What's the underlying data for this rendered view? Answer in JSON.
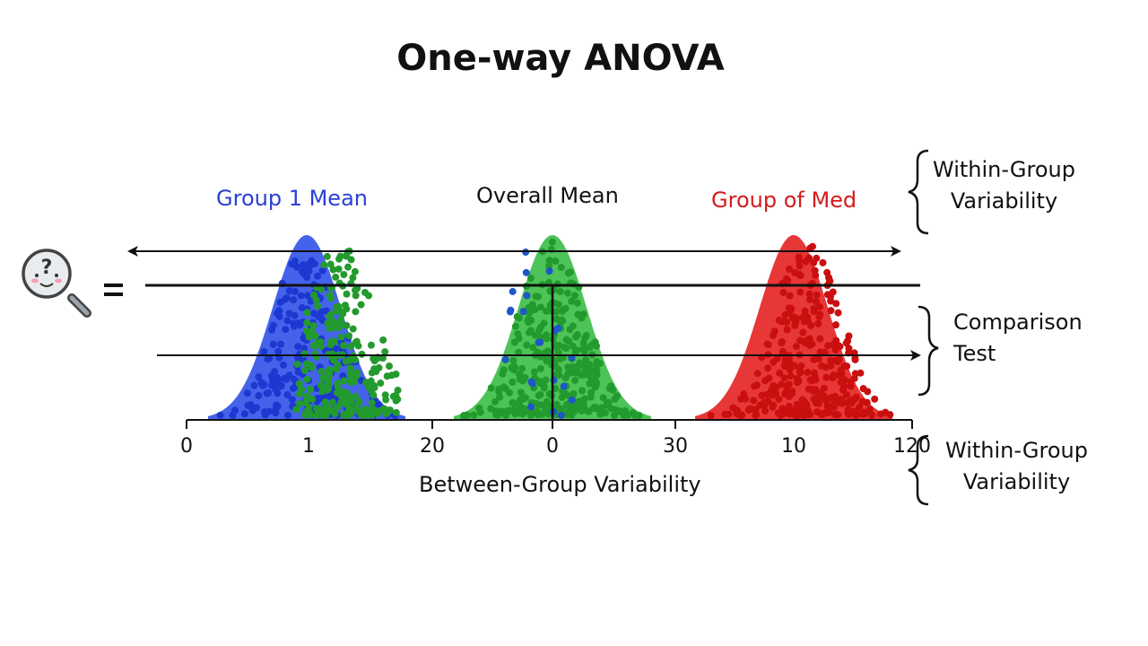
{
  "title": "One-way ANOVA",
  "labels": {
    "group1": "Group 1 Mean",
    "overall": "Overall Mean",
    "group3": "Group of Med"
  },
  "axis": {
    "ticks": [
      "0",
      "1",
      "20",
      "0",
      "30",
      "10",
      "120"
    ],
    "xlabel": "Between-Group Variability"
  },
  "braces": {
    "top": [
      "Within-Group",
      "Variability"
    ],
    "middle": [
      "Comparison",
      "Test"
    ],
    "bottom": [
      "Within-Group",
      "Variability"
    ]
  },
  "equals": "=",
  "icon": "magnifier-question-face-icon",
  "colors": {
    "group1": "#2446e8",
    "overall": "#2fb83a",
    "group3": "#e31414",
    "text_blue": "#2a3fd6",
    "text_red": "#d41b1b"
  }
}
